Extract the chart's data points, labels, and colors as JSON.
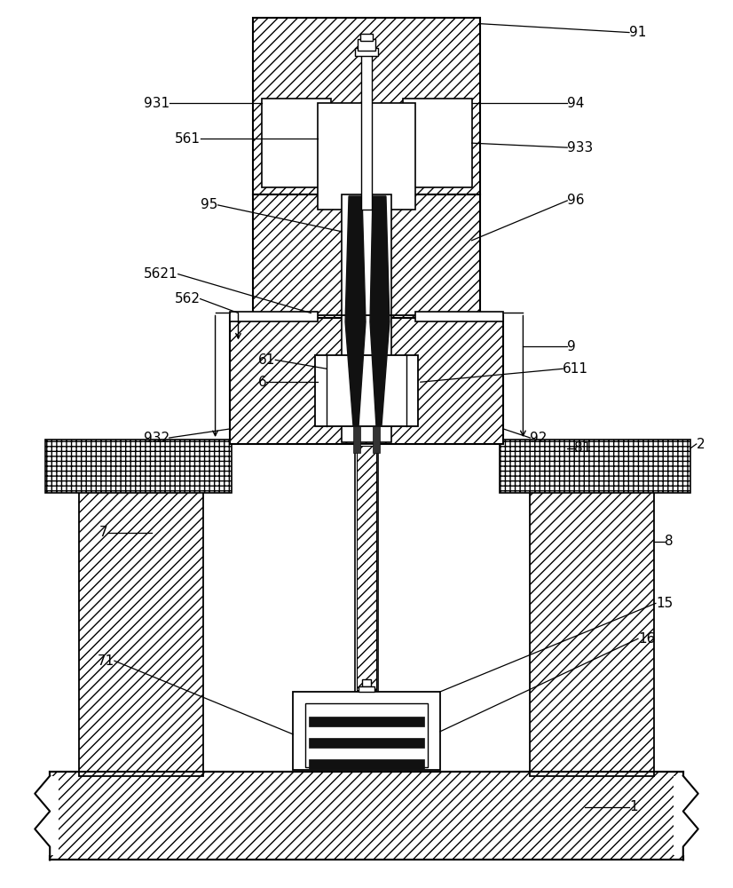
{
  "bg_color": "#ffffff",
  "lc": "#000000",
  "fig_width": 8.26,
  "fig_height": 10.0,
  "dpi": 100
}
